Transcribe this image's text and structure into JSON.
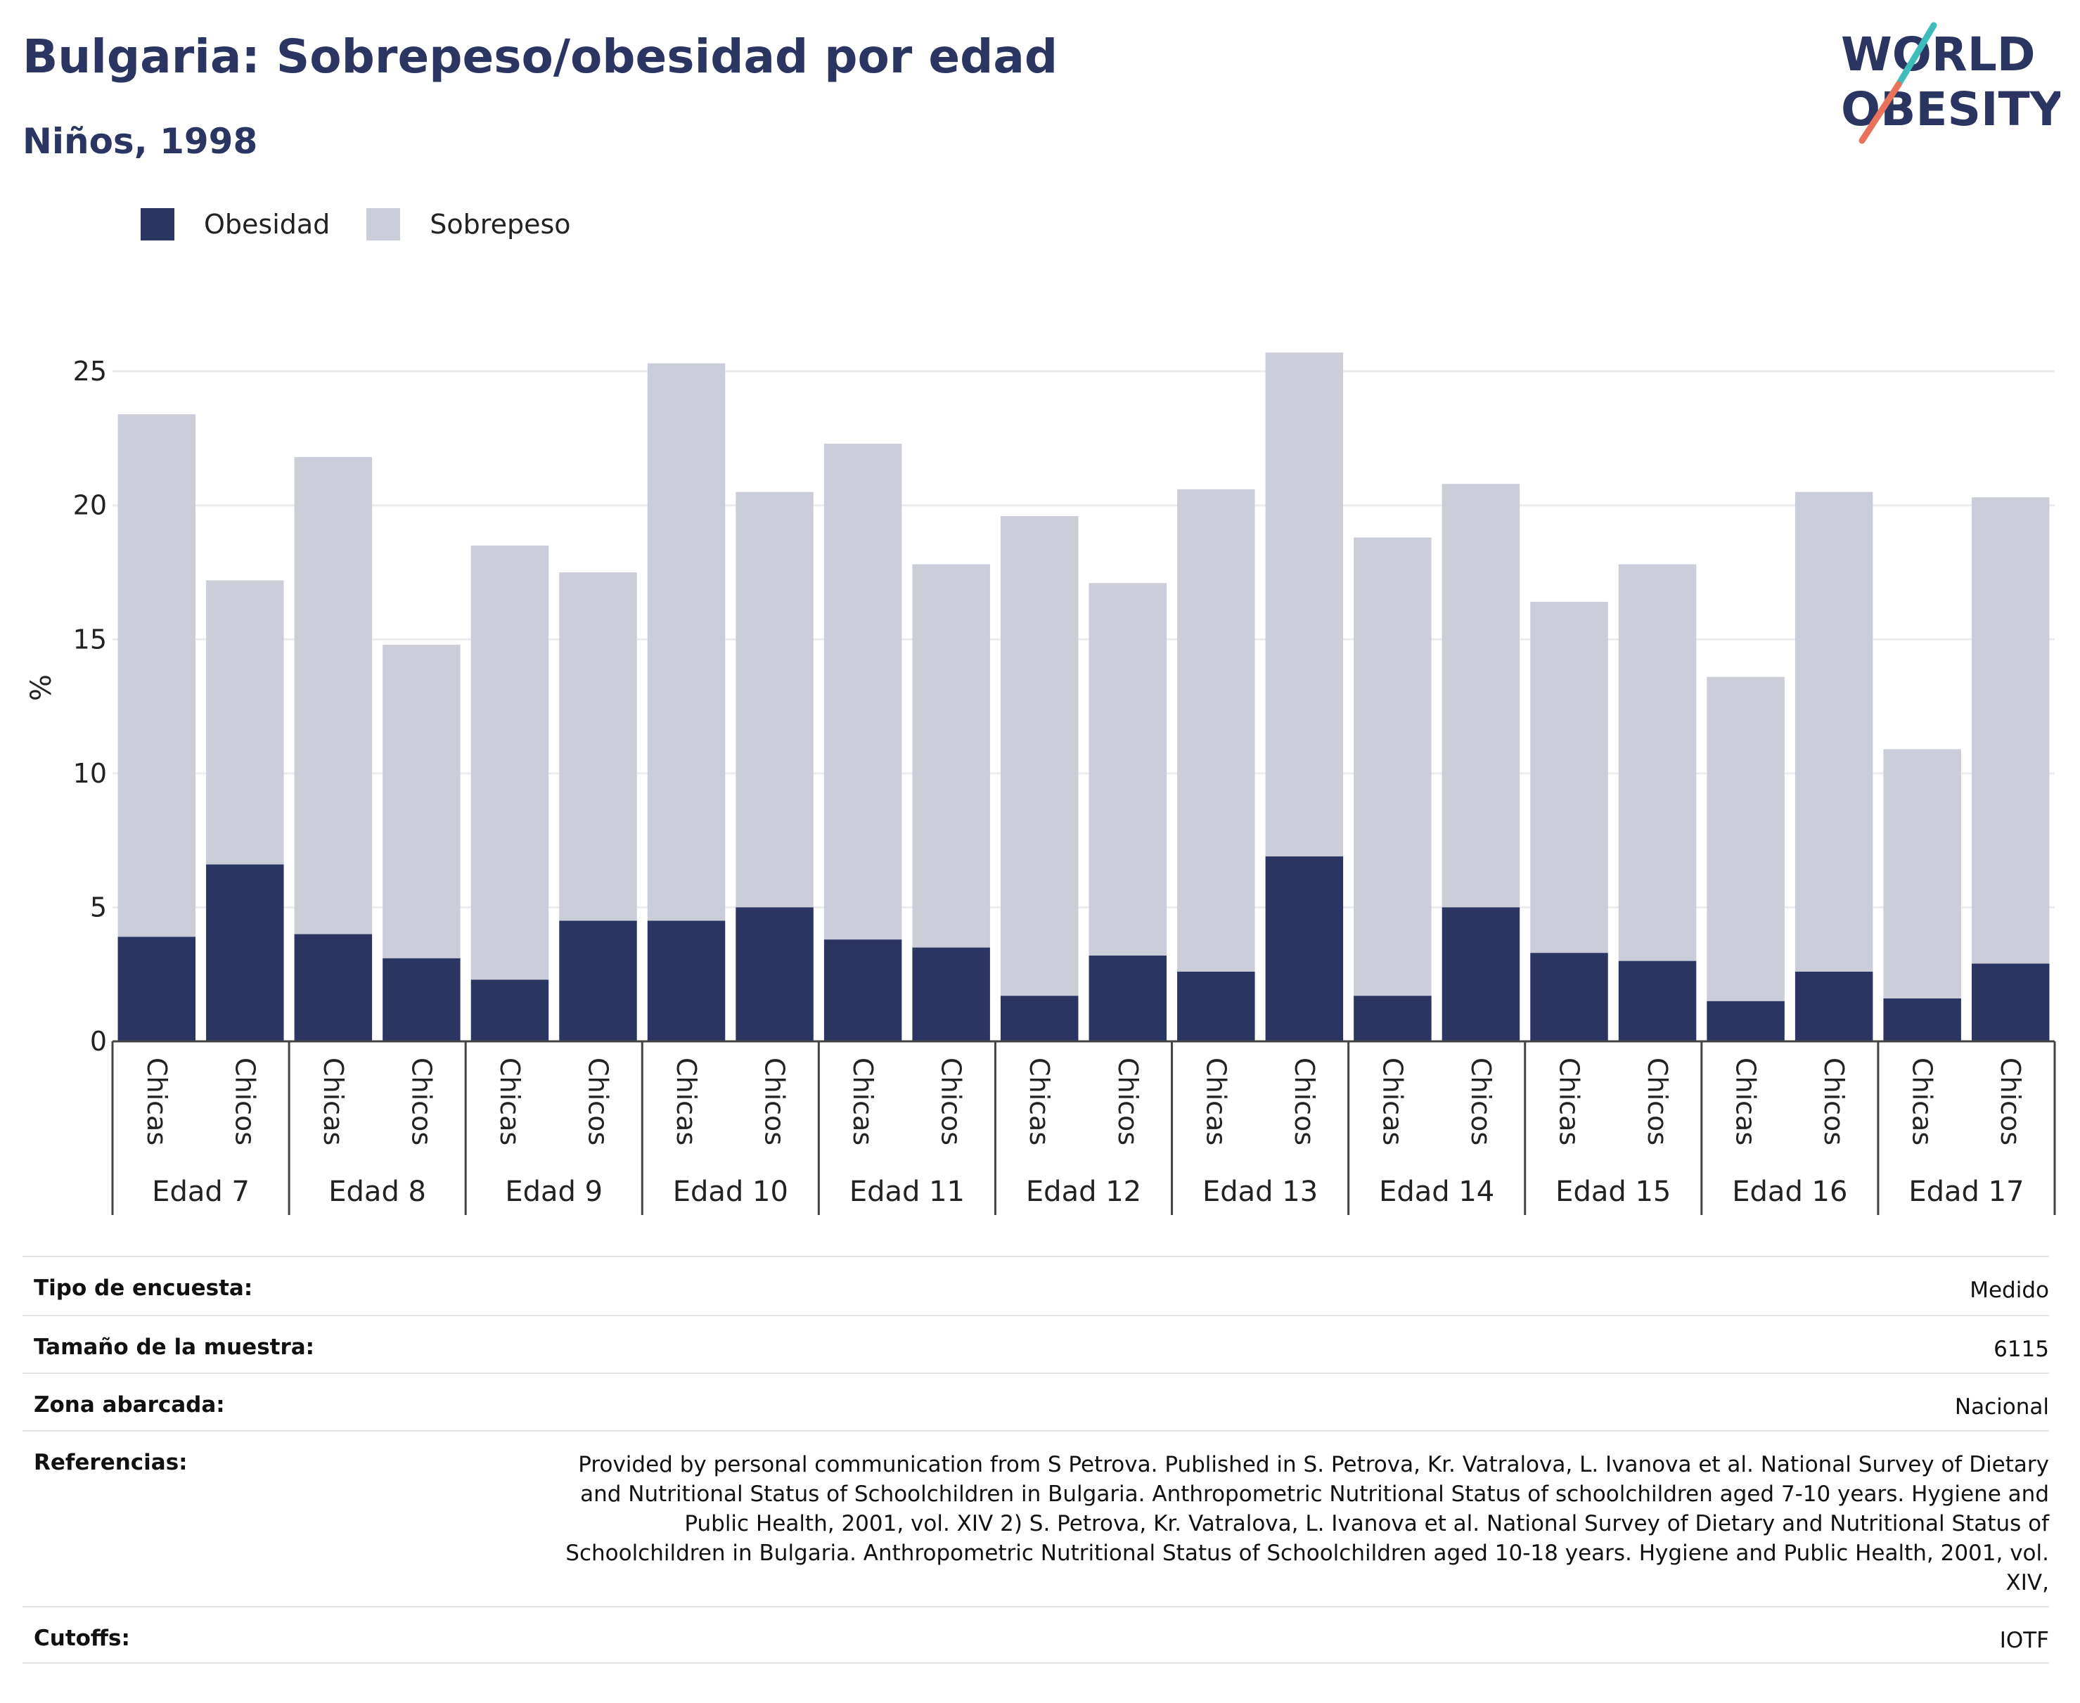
{
  "title": "Bulgaria: Sobrepeso/obesidad por edad",
  "subtitle": "Niños, 1998",
  "logo": {
    "line1": "WORLD",
    "line2": "OBESITY"
  },
  "colors": {
    "obesity": "#2a3562",
    "overweight": "#cbcdd9",
    "title": "#2a3562",
    "logo_teal": "#3fbdbd",
    "logo_coral": "#e8735a"
  },
  "legend": {
    "obesity_label": "Obesidad",
    "overweight_label": "Sobrepeso"
  },
  "chart_data": {
    "type": "bar",
    "stacked": true,
    "ylabel": "%",
    "ylim": [
      0,
      26
    ],
    "yticks": [
      0,
      5,
      10,
      15,
      20,
      25
    ],
    "groups": [
      "Edad 7",
      "Edad 8",
      "Edad 9",
      "Edad 10",
      "Edad 11",
      "Edad 12",
      "Edad 13",
      "Edad 14",
      "Edad 15",
      "Edad 16",
      "Edad 17"
    ],
    "subcategories": [
      "Chicas",
      "Chicos"
    ],
    "series": [
      {
        "name": "Obesidad",
        "values": [
          3.9,
          6.6,
          4.0,
          3.1,
          2.3,
          4.5,
          4.5,
          5.0,
          3.8,
          3.5,
          1.7,
          3.2,
          2.6,
          6.9,
          1.7,
          5.0,
          3.3,
          3.0,
          1.5,
          2.6,
          1.6,
          2.9
        ]
      },
      {
        "name": "Sobrepeso",
        "values": [
          19.5,
          10.6,
          17.8,
          11.7,
          16.2,
          13.0,
          20.8,
          15.5,
          18.5,
          14.3,
          17.9,
          13.9,
          18.0,
          18.8,
          17.1,
          15.8,
          13.1,
          14.8,
          12.1,
          17.9,
          9.3,
          17.4
        ]
      }
    ],
    "grid": true,
    "legend_position": "top-left"
  },
  "meta": {
    "survey_type_label": "Tipo de encuesta:",
    "survey_type_value": "Medido",
    "sample_size_label": "Tamaño de la muestra:",
    "sample_size_value": "6115",
    "area_label": "Zona abarcada:",
    "area_value": "Nacional",
    "references_label": "Referencias:",
    "references_value": "Provided by personal communication from S Petrova. Published in S. Petrova, Kr. Vatralova, L. Ivanova et al. National Survey of Dietary and Nutritional Status of Schoolchildren in Bulgaria. Anthropometric Nutritional Status of schoolchildren aged 7-10 years. Hygiene and Public Health, 2001, vol. XIV 2) S. Petrova, Kr. Vatralova, L. Ivanova et al. National Survey of Dietary and Nutritional Status of Schoolchildren in Bulgaria. Anthropometric Nutritional Status of Schoolchildren aged 10-18 years. Hygiene and Public Health, 2001, vol. XIV,",
    "cutoffs_label": "Cutoffs:",
    "cutoffs_value": "IOTF"
  }
}
